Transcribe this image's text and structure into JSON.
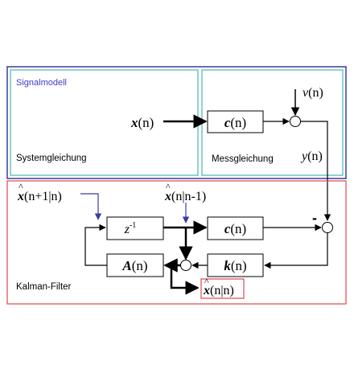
{
  "signal_model": {
    "title": "Signalmodell",
    "system_label": "Systemgleichung",
    "measure_label": "Messgleichung",
    "input_var": "x",
    "input_arg": "(n)",
    "noise_var": "v",
    "noise_arg": "(n)",
    "output_var": "y",
    "output_arg": "(n)",
    "c_block_var": "c",
    "c_block_arg": "(n)"
  },
  "kalman": {
    "title": "Kalman-Filter",
    "pred_var": "x",
    "pred_arg": "(n+1|n)",
    "prior_var": "x",
    "prior_arg": "(n|n-1)",
    "z_block": "z",
    "z_block_exp": "-1",
    "c_block_var": "c",
    "c_block_arg": "(n)",
    "a_block_var": "A",
    "a_block_arg": "(n)",
    "k_block_var": "k",
    "k_block_arg": "(n)",
    "est_var": "x",
    "est_arg": "(n|n)",
    "minus_sign": "-"
  },
  "colors": {
    "outer_box": "#3a3d9c",
    "inner_box": "#46b7b0",
    "kalman_box": "#e0474c",
    "title_text": "#3c3ccc",
    "pointer_arrow": "#3a3aa8",
    "line": "#000000"
  }
}
